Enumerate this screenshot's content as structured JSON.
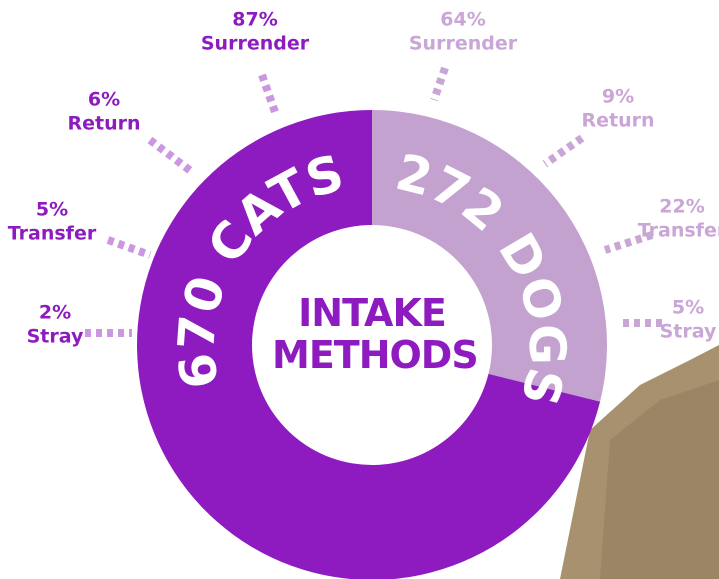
{
  "chart_data": {
    "type": "donut",
    "title": "INTAKE METHODS",
    "segments": [
      {
        "name": "CATS",
        "value": 670,
        "color": "#8e1bbf",
        "methods": [
          {
            "label": "Surrender",
            "value": 87,
            "value_label": "87%"
          },
          {
            "label": "Return",
            "value": 6,
            "value_label": "6%"
          },
          {
            "label": "Transfer",
            "value": 5,
            "value_label": "5%"
          },
          {
            "label": "Stray",
            "value": 2,
            "value_label": "2%"
          }
        ]
      },
      {
        "name": "DOGS",
        "value": 272,
        "color": "#c4a2cf",
        "methods": [
          {
            "label": "Surrender",
            "value": 64,
            "value_label": "64%"
          },
          {
            "label": "Return",
            "value": 9,
            "value_label": "9%"
          },
          {
            "label": "Transfer",
            "value": 22,
            "value_label": "22%"
          },
          {
            "label": "Stray",
            "value": 5,
            "value_label": "5%"
          }
        ]
      }
    ]
  }
}
